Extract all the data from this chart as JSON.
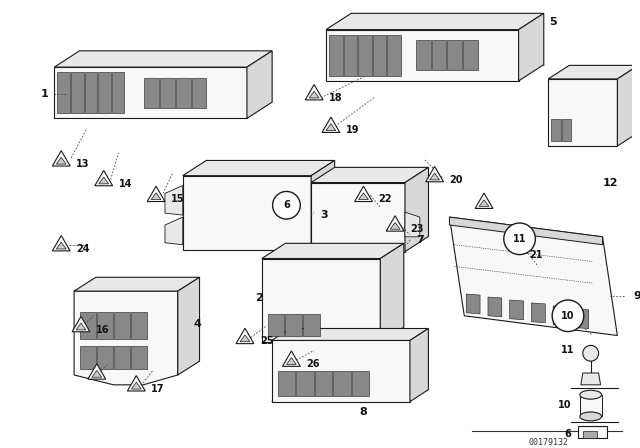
{
  "bg_color": "#ffffff",
  "fig_width": 6.4,
  "fig_height": 4.48,
  "dpi": 100,
  "watermark": "00179132",
  "ec": "#1a1a1a",
  "fc_light": "#f8f8f8",
  "fc_mid": "#e8e8e8",
  "fc_dark": "#d8d8d8"
}
